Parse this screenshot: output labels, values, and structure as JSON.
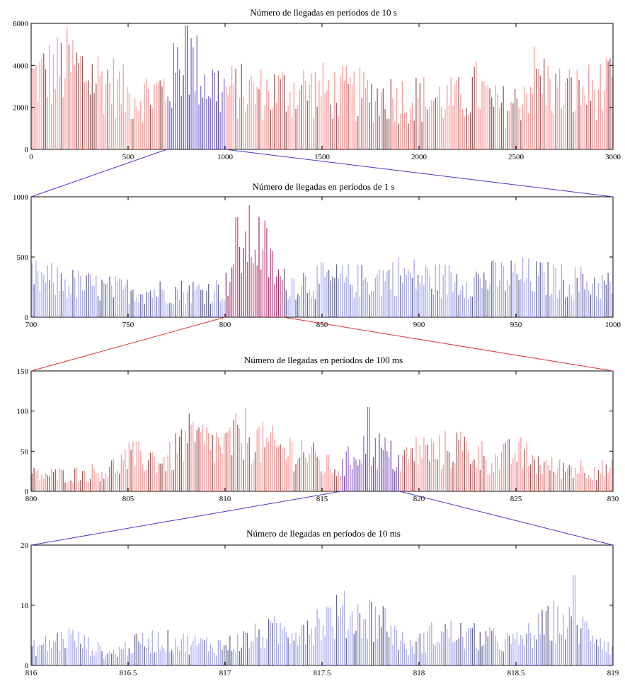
{
  "chart_data": [
    {
      "type": "bar",
      "title": "Número de llegadas en períodos de 10 s",
      "x_range": [
        0,
        3000
      ],
      "ylim": [
        0,
        6000
      ],
      "x_ticks": [
        0,
        500,
        1000,
        1500,
        2000,
        2500,
        3000
      ],
      "y_ticks": [
        0,
        2000,
        4000,
        6000
      ],
      "x_tick_labels": [
        "0",
        "500",
        "1000",
        "1500",
        "2000",
        "2500",
        "3000"
      ],
      "y_tick_labels": [
        "0",
        "2000",
        "4000",
        "6000"
      ],
      "base_color": "#ff9a9a",
      "highlight": {
        "range": [
          700,
          1000
        ],
        "color": "#7a6bd6"
      },
      "series_points": [
        [
          0,
          3600
        ],
        [
          100,
          3900
        ],
        [
          200,
          4300
        ],
        [
          300,
          3800
        ],
        [
          400,
          3500
        ],
        [
          500,
          2700
        ],
        [
          600,
          2800
        ],
        [
          700,
          3100
        ],
        [
          800,
          4800
        ],
        [
          900,
          3500
        ],
        [
          1000,
          3000
        ],
        [
          1200,
          2900
        ],
        [
          1400,
          3100
        ],
        [
          1600,
          2900
        ],
        [
          1800,
          2700
        ],
        [
          2000,
          2600
        ],
        [
          2200,
          2500
        ],
        [
          2300,
          3100
        ],
        [
          2400,
          2200
        ],
        [
          2500,
          2300
        ],
        [
          2600,
          3800
        ],
        [
          2700,
          3000
        ],
        [
          2800,
          2900
        ],
        [
          3000,
          3200
        ]
      ],
      "peak": [
        800,
        5900
      ]
    },
    {
      "type": "bar",
      "title": "Número de llegadas en períodos de 1 s",
      "x_range": [
        700,
        1000
      ],
      "ylim": [
        0,
        1000
      ],
      "x_ticks": [
        700,
        750,
        800,
        850,
        900,
        950,
        1000
      ],
      "y_ticks": [
        0,
        500,
        1000
      ],
      "x_tick_labels": [
        "700",
        "750",
        "800",
        "850",
        "900",
        "950",
        "1000"
      ],
      "y_tick_labels": [
        "0",
        "500",
        "1000"
      ],
      "base_color": "#a9a9f5",
      "highlight": {
        "range": [
          800,
          830
        ],
        "color": "#d0508a"
      },
      "series_points": [
        [
          700,
          350
        ],
        [
          720,
          300
        ],
        [
          740,
          250
        ],
        [
          760,
          230
        ],
        [
          780,
          230
        ],
        [
          800,
          250
        ],
        [
          805,
          550
        ],
        [
          810,
          650
        ],
        [
          815,
          700
        ],
        [
          820,
          620
        ],
        [
          825,
          420
        ],
        [
          830,
          300
        ],
        [
          850,
          330
        ],
        [
          870,
          320
        ],
        [
          890,
          380
        ],
        [
          910,
          330
        ],
        [
          930,
          330
        ],
        [
          950,
          370
        ],
        [
          970,
          330
        ],
        [
          990,
          300
        ],
        [
          1000,
          280
        ]
      ],
      "peak": [
        806,
        830
      ]
    },
    {
      "type": "bar",
      "title": "Número de llegadas en períodos de 100 ms",
      "x_range": [
        800,
        830
      ],
      "ylim": [
        0,
        150
      ],
      "x_ticks": [
        800,
        805,
        810,
        815,
        820,
        825,
        830
      ],
      "y_ticks": [
        0,
        50,
        100,
        150
      ],
      "x_tick_labels": [
        "800",
        "805",
        "810",
        "815",
        "820",
        "825",
        "830"
      ],
      "y_tick_labels": [
        "0",
        "50",
        "100",
        "150"
      ],
      "base_color": "#ff9a9a",
      "highlight": {
        "range": [
          816,
          819
        ],
        "color": "#9a6bd8"
      },
      "series_points": [
        [
          800,
          22
        ],
        [
          802,
          22
        ],
        [
          804,
          28
        ],
        [
          805,
          45
        ],
        [
          806,
          45
        ],
        [
          807,
          40
        ],
        [
          808,
          70
        ],
        [
          809,
          65
        ],
        [
          810,
          60
        ],
        [
          811,
          78
        ],
        [
          812,
          62
        ],
        [
          813,
          55
        ],
        [
          814,
          55
        ],
        [
          815,
          35
        ],
        [
          816,
          30
        ],
        [
          817,
          60
        ],
        [
          818,
          55
        ],
        [
          819,
          40
        ],
        [
          820,
          55
        ],
        [
          821,
          52
        ],
        [
          822,
          60
        ],
        [
          823,
          50
        ],
        [
          824,
          40
        ],
        [
          825,
          52
        ],
        [
          826,
          40
        ],
        [
          827,
          30
        ],
        [
          828,
          32
        ],
        [
          830,
          28
        ]
      ],
      "peak": [
        817.4,
        105
      ]
    },
    {
      "type": "bar",
      "title": "Número de llegadas en períodos de 10 ms",
      "x_range": [
        816,
        819
      ],
      "ylim": [
        0,
        20
      ],
      "x_ticks": [
        816,
        816.5,
        817,
        817.5,
        818,
        818.5,
        819
      ],
      "y_ticks": [
        0,
        10,
        20
      ],
      "x_tick_labels": [
        "816",
        "816.5",
        "817",
        "817.5",
        "818",
        "818.5",
        "819"
      ],
      "y_tick_labels": [
        "0",
        "10",
        "20"
      ],
      "base_color": "#a9a9f5",
      "highlight": null,
      "series_points": [
        [
          816,
          3
        ],
        [
          816.2,
          5
        ],
        [
          816.4,
          2
        ],
        [
          816.6,
          4.5
        ],
        [
          816.8,
          4
        ],
        [
          817,
          3.5
        ],
        [
          817.2,
          5.5
        ],
        [
          817.4,
          7
        ],
        [
          817.6,
          9
        ],
        [
          817.8,
          8.5
        ],
        [
          817.95,
          3
        ],
        [
          818.1,
          6
        ],
        [
          818.3,
          5
        ],
        [
          818.5,
          4
        ],
        [
          818.7,
          8
        ],
        [
          818.9,
          6
        ],
        [
          819,
          3
        ]
      ],
      "peak": [
        818.8,
        15
      ]
    }
  ],
  "zoom_colors": [
    "#3b3bcc",
    "#e03030",
    "#3b3bcc"
  ]
}
